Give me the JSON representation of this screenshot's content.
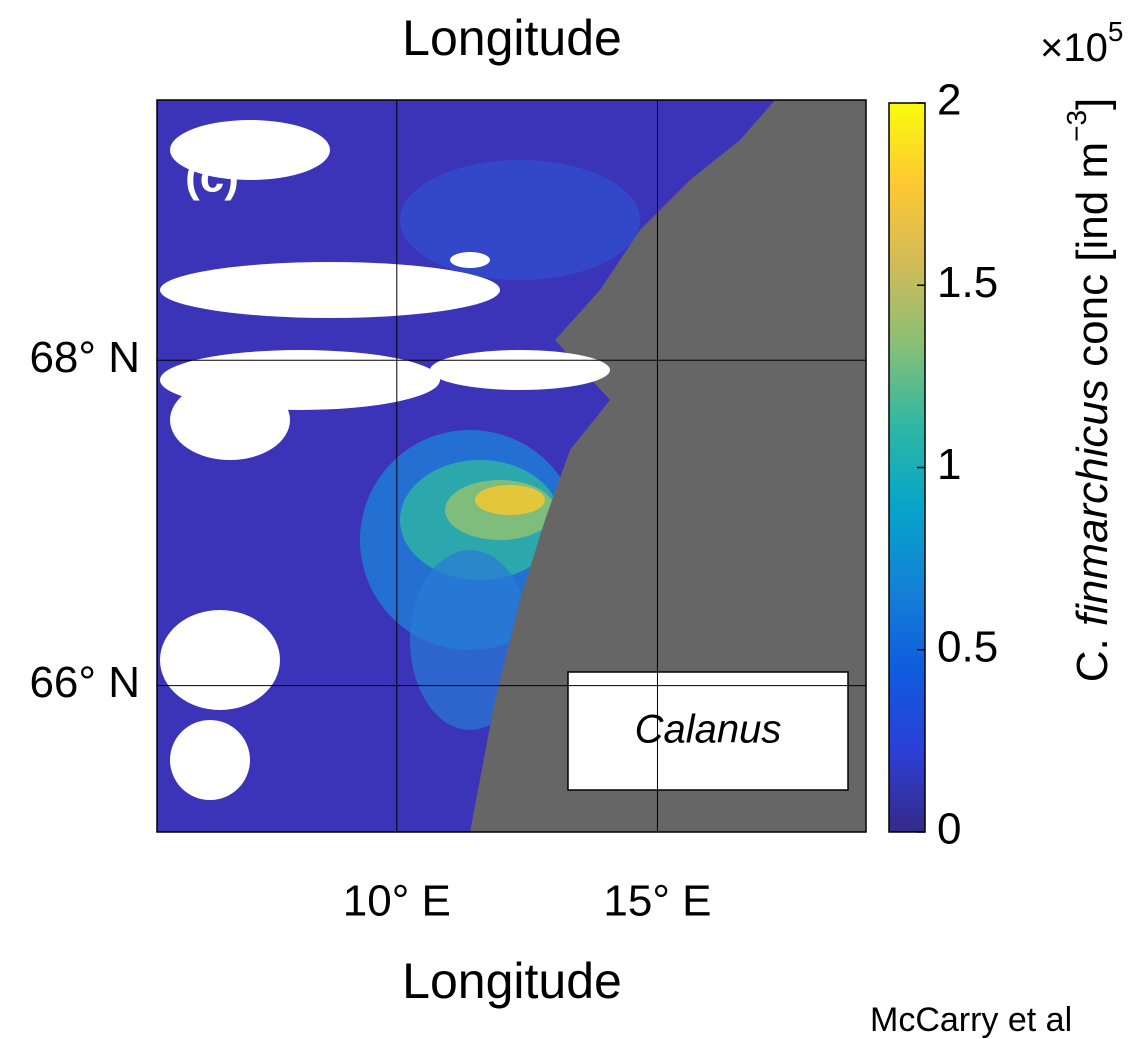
{
  "chart_data": {
    "type": "map",
    "title": "Longitude",
    "x_label": "Longitude",
    "panel_label": "(c)",
    "inset_label": "Calanus",
    "citation": "McCarry et al",
    "xlim": [
      5.4,
      19
    ],
    "ylim": [
      65.1,
      69.6
    ],
    "xticks": [
      {
        "value": 10,
        "label": "10° E"
      },
      {
        "value": 15,
        "label": "15° E"
      }
    ],
    "yticks": [
      {
        "value": 66,
        "label": "66° N"
      },
      {
        "value": 68,
        "label": "68° N"
      }
    ],
    "grid": true,
    "clim": [
      0,
      2
    ],
    "cticks": [
      0,
      0.5,
      1,
      1.5,
      2
    ],
    "colorbar_multiplier": "×10",
    "colorbar_exponent": "5",
    "colorbar_label": {
      "prefix": "C. ",
      "species": "finmarchicus",
      "unit": " conc [ind m",
      "unit_exponent": "−3",
      "suffix": "]"
    },
    "colormap": [
      "#352a87",
      "#2c3fd6",
      "#0f5cdd",
      "#1481d6",
      "#06a4ca",
      "#2eb7a4",
      "#87bf77",
      "#d1bb59",
      "#fec832",
      "#f9fb0e"
    ]
  }
}
